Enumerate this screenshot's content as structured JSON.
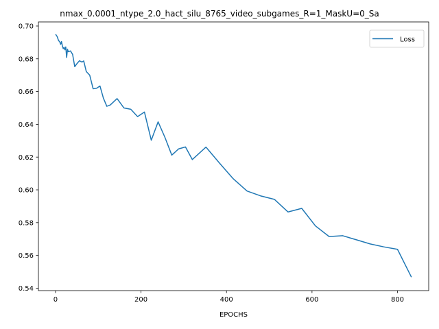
{
  "chart_data": {
    "type": "line",
    "title": "nmax_0.0001_ntype_2.0_hact_silu_8765_video_subgames_R=1_MaskU=0_Sa",
    "xlabel": "EPOCHS",
    "ylabel": "",
    "xlim": [
      -40,
      873
    ],
    "ylim": [
      0.5385,
      0.7025
    ],
    "xticks": [
      0,
      200,
      400,
      600,
      800
    ],
    "yticks": [
      0.54,
      0.56,
      0.58,
      0.6,
      0.62,
      0.64,
      0.66,
      0.68,
      0.7
    ],
    "ytick_labels": [
      "0.54",
      "0.56",
      "0.58",
      "0.60",
      "0.62",
      "0.64",
      "0.66",
      "0.68",
      "0.70"
    ],
    "grid": false,
    "legend": "upper-right",
    "color": "#1f77b4",
    "series": [
      {
        "name": "Loss",
        "x": [
          1,
          4,
          7,
          10,
          12,
          14,
          16,
          18,
          20,
          22,
          24,
          26,
          28,
          30,
          35,
          40,
          45,
          50,
          56,
          62,
          66,
          72,
          80,
          88,
          96,
          104,
          112,
          120,
          128,
          144,
          160,
          176,
          192,
          208,
          224,
          240,
          256,
          272,
          288,
          304,
          320,
          352,
          384,
          416,
          448,
          480,
          512,
          544,
          576,
          608,
          640,
          672,
          704,
          736,
          768,
          800,
          832
        ],
        "values": [
          0.6947,
          0.6935,
          0.6912,
          0.6903,
          0.6888,
          0.6905,
          0.688,
          0.6862,
          0.687,
          0.6855,
          0.6872,
          0.6808,
          0.6858,
          0.6843,
          0.6848,
          0.6827,
          0.6752,
          0.677,
          0.6788,
          0.678,
          0.6787,
          0.6722,
          0.67,
          0.6617,
          0.662,
          0.6634,
          0.656,
          0.651,
          0.6518,
          0.6557,
          0.65,
          0.6492,
          0.6447,
          0.6475,
          0.6303,
          0.6415,
          0.632,
          0.6212,
          0.625,
          0.6262,
          0.6185,
          0.6261,
          0.6162,
          0.6067,
          0.5993,
          0.5963,
          0.5942,
          0.5865,
          0.5887,
          0.578,
          0.5715,
          0.572,
          0.5695,
          0.567,
          0.5652,
          0.5637,
          0.547
        ]
      }
    ]
  }
}
